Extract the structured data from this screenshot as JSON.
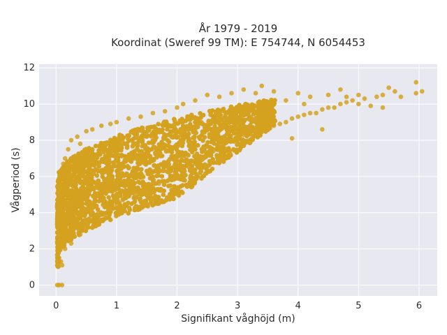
{
  "chart_data": {
    "type": "scatter",
    "title_line1": "År 1979 - 2019",
    "title_line2": "Koordinat (Sweref 99 TM): E 754744, N 6054453",
    "xlabel": "Signifikant våghöjd (m)",
    "ylabel": "Vågperiod (s)",
    "xlim": [
      -0.28,
      6.3
    ],
    "ylim": [
      -0.6,
      12.2
    ],
    "xticks": [
      0,
      1,
      2,
      3,
      4,
      5,
      6
    ],
    "yticks": [
      0,
      2,
      4,
      6,
      8,
      10,
      12
    ],
    "grid": true,
    "plot_background": "#e8e8f0",
    "grid_color": "#ffffff",
    "marker_color": "#d4a21f",
    "series": [
      {
        "points": [
          [
            0.02,
            0.0
          ],
          [
            0.05,
            0.0
          ],
          [
            0.1,
            0.0
          ],
          [
            0.03,
            1.9
          ],
          [
            0.04,
            2.5
          ],
          [
            0.05,
            3.0
          ],
          [
            0.05,
            4.4
          ],
          [
            0.06,
            5.5
          ],
          [
            0.08,
            1.3
          ],
          [
            0.1,
            1.1
          ],
          [
            0.1,
            3.6
          ],
          [
            0.1,
            6.1
          ],
          [
            0.12,
            6.7
          ],
          [
            0.15,
            2.0
          ],
          [
            0.15,
            7.0
          ],
          [
            0.2,
            3.0
          ],
          [
            0.2,
            5.5
          ],
          [
            0.2,
            7.5
          ],
          [
            0.25,
            2.3
          ],
          [
            0.25,
            8.0
          ],
          [
            0.3,
            4.0
          ],
          [
            0.3,
            6.5
          ],
          [
            0.35,
            3.5
          ],
          [
            0.35,
            8.2
          ],
          [
            0.4,
            2.8
          ],
          [
            0.4,
            7.8
          ],
          [
            0.45,
            5.0
          ],
          [
            0.5,
            3.2
          ],
          [
            0.5,
            8.5
          ],
          [
            0.55,
            6.0
          ],
          [
            0.6,
            3.6
          ],
          [
            0.6,
            8.6
          ],
          [
            0.7,
            4.0
          ],
          [
            0.7,
            7.2
          ],
          [
            0.75,
            8.8
          ],
          [
            0.8,
            3.9
          ],
          [
            0.8,
            5.8
          ],
          [
            0.9,
            4.2
          ],
          [
            0.9,
            8.9
          ],
          [
            1.0,
            4.4
          ],
          [
            1.0,
            6.8
          ],
          [
            1.0,
            9.0
          ],
          [
            1.1,
            4.7
          ],
          [
            1.1,
            8.0
          ],
          [
            1.2,
            4.9
          ],
          [
            1.2,
            9.2
          ],
          [
            1.3,
            5.0
          ],
          [
            1.3,
            7.0
          ],
          [
            1.4,
            5.2
          ],
          [
            1.4,
            9.3
          ],
          [
            1.5,
            5.3
          ],
          [
            1.5,
            8.2
          ],
          [
            1.6,
            5.5
          ],
          [
            1.6,
            9.5
          ],
          [
            1.7,
            5.6
          ],
          [
            1.7,
            7.6
          ],
          [
            1.8,
            5.7
          ],
          [
            1.8,
            9.6
          ],
          [
            1.9,
            5.9
          ],
          [
            1.9,
            8.4
          ],
          [
            2.0,
            6.1
          ],
          [
            2.0,
            9.8
          ],
          [
            2.1,
            6.3
          ],
          [
            2.1,
            10.0
          ],
          [
            2.2,
            6.5
          ],
          [
            2.2,
            8.6
          ],
          [
            2.3,
            6.7
          ],
          [
            2.3,
            10.2
          ],
          [
            2.4,
            7.0
          ],
          [
            2.4,
            9.0
          ],
          [
            2.5,
            7.2
          ],
          [
            2.5,
            10.5
          ],
          [
            2.6,
            7.4
          ],
          [
            2.6,
            9.2
          ],
          [
            2.7,
            7.6
          ],
          [
            2.7,
            10.4
          ],
          [
            2.8,
            7.9
          ],
          [
            2.8,
            9.4
          ],
          [
            2.9,
            8.0
          ],
          [
            2.9,
            10.6
          ],
          [
            3.0,
            8.2
          ],
          [
            3.0,
            9.6
          ],
          [
            3.1,
            8.3
          ],
          [
            3.1,
            10.8
          ],
          [
            3.2,
            8.4
          ],
          [
            3.2,
            9.8
          ],
          [
            3.3,
            8.5
          ],
          [
            3.3,
            10.6
          ],
          [
            3.4,
            8.6
          ],
          [
            3.4,
            11.0
          ],
          [
            3.5,
            8.7
          ],
          [
            3.5,
            9.9
          ],
          [
            3.6,
            8.8
          ],
          [
            3.6,
            10.7
          ],
          [
            3.7,
            8.9
          ],
          [
            3.8,
            9.0
          ],
          [
            3.8,
            10.2
          ],
          [
            3.9,
            8.1
          ],
          [
            3.9,
            9.2
          ],
          [
            4.0,
            9.3
          ],
          [
            4.0,
            10.6
          ],
          [
            4.1,
            9.4
          ],
          [
            4.1,
            10.0
          ],
          [
            4.2,
            9.5
          ],
          [
            4.2,
            10.4
          ],
          [
            4.3,
            9.5
          ],
          [
            4.4,
            8.6
          ],
          [
            4.4,
            9.7
          ],
          [
            4.5,
            9.8
          ],
          [
            4.5,
            10.5
          ],
          [
            4.6,
            9.8
          ],
          [
            4.7,
            10.0
          ],
          [
            4.7,
            10.8
          ],
          [
            4.8,
            10.1
          ],
          [
            4.8,
            10.4
          ],
          [
            4.9,
            10.2
          ],
          [
            5.0,
            10.0
          ],
          [
            5.0,
            10.5
          ],
          [
            5.1,
            10.3
          ],
          [
            5.2,
            9.9
          ],
          [
            5.3,
            10.4
          ],
          [
            5.4,
            10.5
          ],
          [
            5.4,
            9.8
          ],
          [
            5.5,
            10.9
          ],
          [
            5.6,
            10.7
          ],
          [
            5.7,
            10.4
          ],
          [
            5.95,
            11.2
          ],
          [
            5.95,
            10.6
          ],
          [
            6.05,
            10.7
          ]
        ]
      }
    ]
  }
}
